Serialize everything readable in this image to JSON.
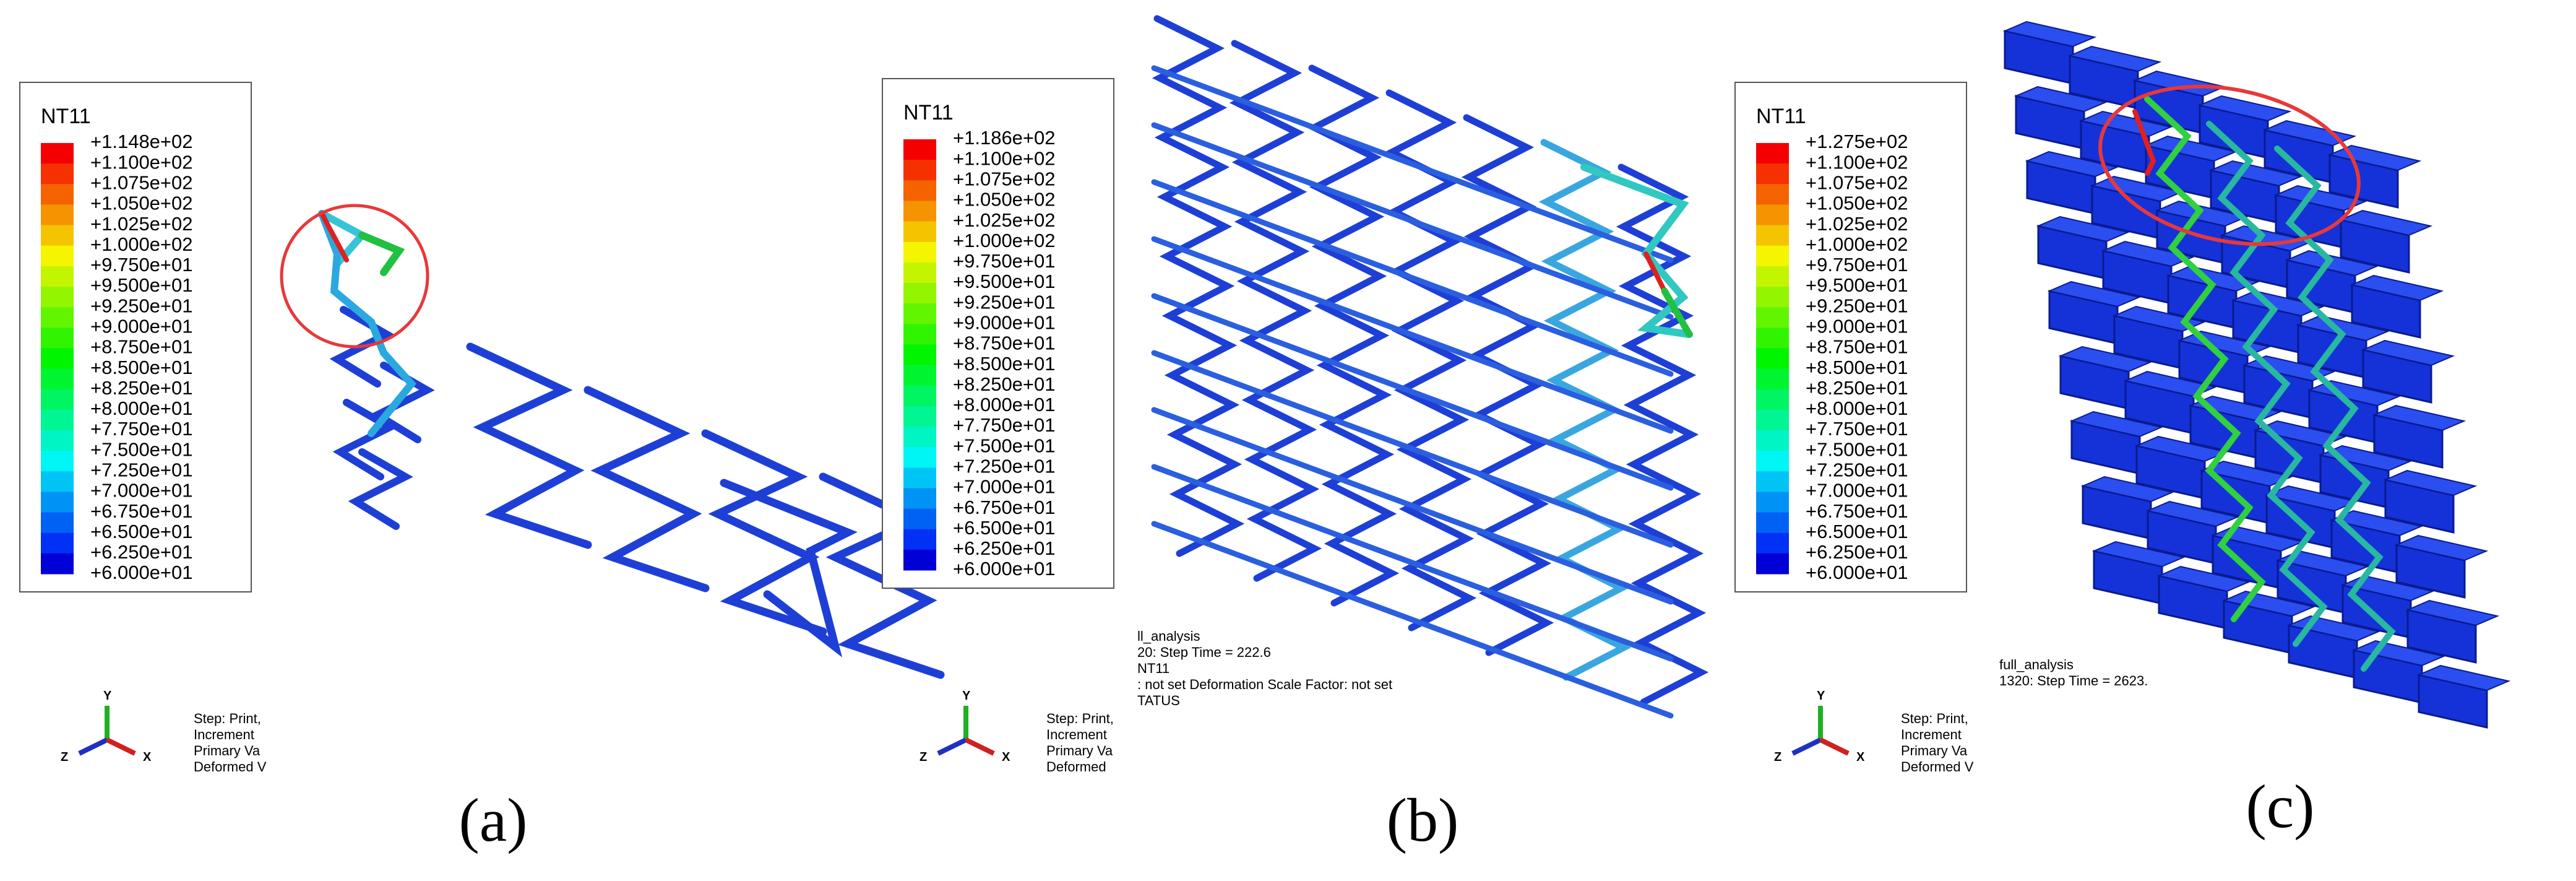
{
  "panels": [
    {
      "legend": {
        "title": "NT11",
        "labels": [
          "+1.148e+02",
          "+1.100e+02",
          "+1.075e+02",
          "+1.050e+02",
          "+1.025e+02",
          "+1.000e+02",
          "+9.750e+01",
          "+9.500e+01",
          "+9.250e+01",
          "+9.000e+01",
          "+8.750e+01",
          "+8.500e+01",
          "+8.250e+01",
          "+8.000e+01",
          "+7.750e+01",
          "+7.500e+01",
          "+7.250e+01",
          "+7.000e+01",
          "+6.750e+01",
          "+6.500e+01",
          "+6.250e+01",
          "+6.000e+01"
        ]
      },
      "triad": [
        "Y",
        "Z",
        "X"
      ],
      "info": [
        "Step: Print,",
        "Increment",
        "Primary Va",
        "Deformed V"
      ],
      "top_info": [],
      "caption": "(a)"
    },
    {
      "legend": {
        "title": "NT11",
        "labels": [
          "+1.186e+02",
          "+1.100e+02",
          "+1.075e+02",
          "+1.050e+02",
          "+1.025e+02",
          "+1.000e+02",
          "+9.750e+01",
          "+9.500e+01",
          "+9.250e+01",
          "+9.000e+01",
          "+8.750e+01",
          "+8.500e+01",
          "+8.250e+01",
          "+8.000e+01",
          "+7.750e+01",
          "+7.500e+01",
          "+7.250e+01",
          "+7.000e+01",
          "+6.750e+01",
          "+6.500e+01",
          "+6.250e+01",
          "+6.000e+01"
        ]
      },
      "triad": [
        "Y",
        "Z",
        "X"
      ],
      "info": [
        "Step: Print,",
        "Increment",
        "Primary Va",
        "Deformed"
      ],
      "top_info": [
        "ll_analysis",
        "20: Step Time =    222.6",
        "NT11",
        ": not set   Deformation Scale Factor: not set",
        "TATUS"
      ],
      "caption": "(b)"
    },
    {
      "legend": {
        "title": "NT11",
        "labels": [
          "+1.275e+02",
          "+1.100e+02",
          "+1.075e+02",
          "+1.050e+02",
          "+1.025e+02",
          "+1.000e+02",
          "+9.750e+01",
          "+9.500e+01",
          "+9.250e+01",
          "+9.000e+01",
          "+8.750e+01",
          "+8.500e+01",
          "+8.250e+01",
          "+8.000e+01",
          "+7.750e+01",
          "+7.500e+01",
          "+7.250e+01",
          "+7.000e+01",
          "+6.750e+01",
          "+6.500e+01",
          "+6.250e+01",
          "+6.000e+01"
        ]
      },
      "triad": [
        "Y",
        "Z",
        "X"
      ],
      "info": [
        "Step: Print,",
        "Increment",
        "Primary Va",
        "Deformed V"
      ],
      "top_info": [
        "full_analysis",
        "1320: Step Time =    2623."
      ],
      "caption": "(c)"
    }
  ]
}
